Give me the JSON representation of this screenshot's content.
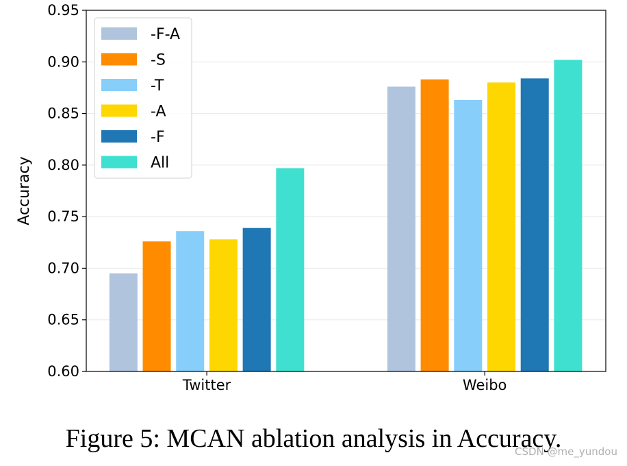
{
  "chart_data": {
    "type": "bar",
    "title": "",
    "xlabel": "",
    "ylabel": "Accuracy",
    "ylim": [
      0.6,
      0.95
    ],
    "yticks": [
      "0.60",
      "0.65",
      "0.70",
      "0.75",
      "0.80",
      "0.85",
      "0.90",
      "0.95"
    ],
    "grid": "horizontal",
    "legend_position": "top-left",
    "categories": [
      "Twitter",
      "Weibo"
    ],
    "series": [
      {
        "name": "-F-A",
        "color": "#B0C4DE",
        "values": [
          0.695,
          0.876
        ]
      },
      {
        "name": "-S",
        "color": "#FF8C00",
        "values": [
          0.726,
          0.883
        ]
      },
      {
        "name": "-T",
        "color": "#87CEFA",
        "values": [
          0.736,
          0.863
        ]
      },
      {
        "name": "-A",
        "color": "#FFD700",
        "values": [
          0.728,
          0.88
        ]
      },
      {
        "name": "-F",
        "color": "#1F77B4",
        "values": [
          0.739,
          0.884
        ]
      },
      {
        "name": "All",
        "color": "#40E0D0",
        "values": [
          0.797,
          0.902
        ]
      }
    ]
  },
  "caption": "Figure 5: MCAN ablation analysis in Accuracy.",
  "watermark": "CSDN @me_yundou"
}
